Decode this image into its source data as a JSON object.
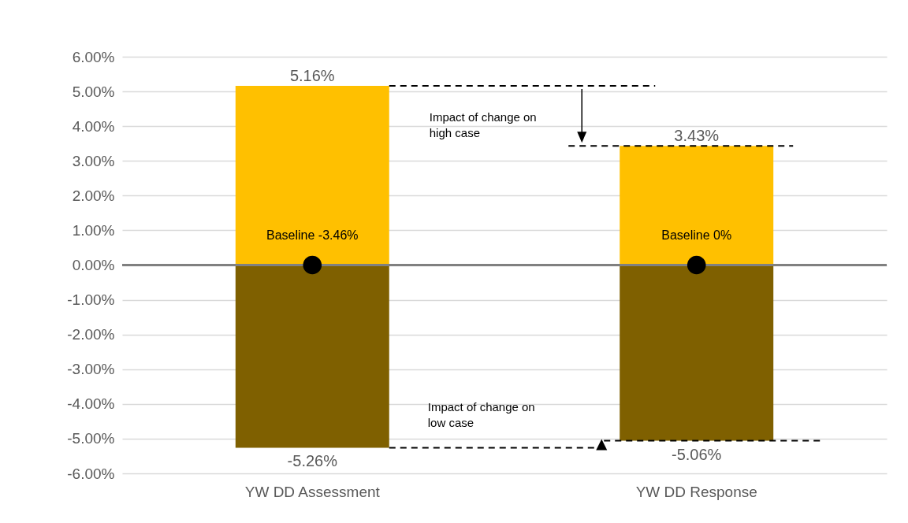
{
  "chart_data": {
    "type": "bar",
    "categories": [
      "YW DD Assessment",
      "YW DD Response"
    ],
    "stacked": true,
    "ylim": [
      -6,
      6
    ],
    "yticks": [
      {
        "value": -6,
        "label": "-6.00%"
      },
      {
        "value": -5,
        "label": "-5.00%"
      },
      {
        "value": -4,
        "label": "-4.00%"
      },
      {
        "value": -3,
        "label": "-3.00%"
      },
      {
        "value": -2,
        "label": "-2.00%"
      },
      {
        "value": -1,
        "label": "-1.00%"
      },
      {
        "value": 0,
        "label": "0.00%"
      },
      {
        "value": 1,
        "label": "1.00%"
      },
      {
        "value": 2,
        "label": "2.00%"
      },
      {
        "value": 3,
        "label": "3.00%"
      },
      {
        "value": 4,
        "label": "4.00%"
      },
      {
        "value": 5,
        "label": "5.00%"
      },
      {
        "value": 6,
        "label": "6.00%"
      }
    ],
    "grid": "y",
    "series": [
      {
        "color": "#ffc000",
        "values": [
          5.16,
          3.43
        ],
        "value_labels": [
          "5.16%",
          "3.43%"
        ]
      },
      {
        "color": "#7f6000",
        "values": [
          -5.26,
          -5.06
        ],
        "value_labels": [
          "-5.26%",
          "-5.06%"
        ]
      },
      {
        "type": "scatter",
        "x": [
          "YW DD Assessment",
          "YW DD Response"
        ],
        "color": "#000000",
        "marker": "circle",
        "values": [
          0,
          0
        ]
      }
    ],
    "ref_lines": [
      {
        "axis": "y",
        "value": 0,
        "color": "#808080"
      }
    ],
    "annotations": [
      "Impact of change on high case",
      "Impact of change on low case",
      {
        "text": "Baseline -3.46%",
        "x": "YW DD Assessment",
        "y": 0
      },
      {
        "text": "Baseline 0%",
        "x": "YW DD Response",
        "y": 0
      }
    ]
  }
}
